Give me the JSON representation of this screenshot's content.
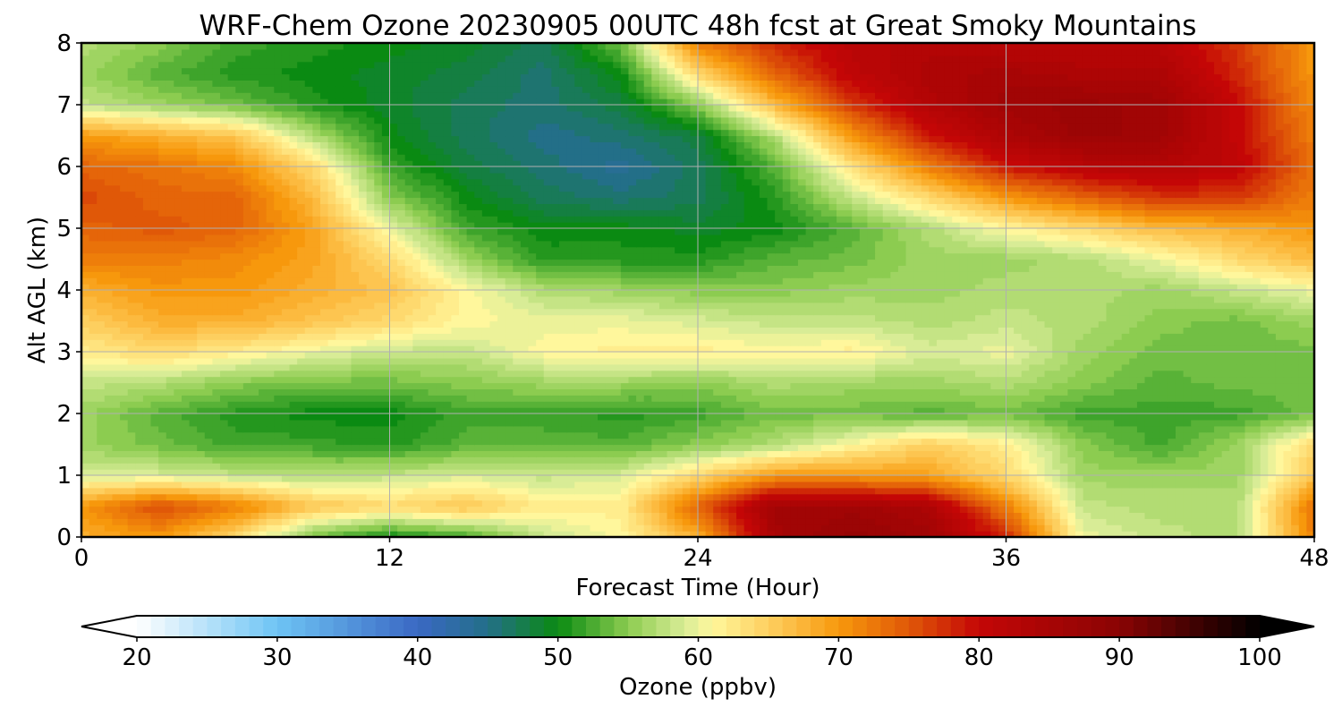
{
  "chart_data": {
    "type": "heatmap",
    "title": "WRF-Chem Ozone  20230905 00UTC 48h fcst at Great Smoky Mountains",
    "xlabel": "Forecast Time (Hour)",
    "ylabel": "Alt AGL (km)",
    "xlim": [
      0,
      48
    ],
    "ylim": [
      0,
      8
    ],
    "xticks": [
      0,
      12,
      24,
      36,
      48
    ],
    "yticks": [
      0,
      1,
      2,
      3,
      4,
      5,
      6,
      7,
      8
    ],
    "grid": true,
    "x": [
      0,
      3,
      6,
      9,
      12,
      15,
      18,
      21,
      24,
      27,
      30,
      33,
      36,
      39,
      42,
      45,
      48
    ],
    "y": [
      0,
      0.5,
      1,
      1.5,
      2,
      2.5,
      3,
      3.5,
      4,
      4.5,
      5,
      5.5,
      6,
      6.5,
      7,
      7.5,
      8
    ],
    "z": [
      [
        68,
        70,
        64,
        54,
        50,
        52,
        58,
        61,
        68,
        85,
        88,
        86,
        78,
        60,
        58,
        57,
        72
      ],
      [
        70,
        76,
        72,
        66,
        64,
        66,
        62,
        62,
        74,
        86,
        86,
        84,
        72,
        58,
        57,
        57,
        73
      ],
      [
        59,
        59,
        58,
        57,
        58,
        59,
        58,
        59,
        64,
        70,
        70,
        69,
        64,
        56,
        56,
        56,
        66
      ],
      [
        56,
        54,
        52,
        52,
        51,
        53,
        53,
        53,
        55,
        57,
        61,
        65,
        62,
        55,
        52,
        56,
        64
      ],
      [
        56,
        53,
        51,
        50,
        50,
        52,
        52,
        51,
        52,
        54,
        54,
        53,
        54,
        52,
        52,
        52,
        54
      ],
      [
        58,
        57,
        55,
        54,
        54,
        55,
        56,
        56,
        55,
        57,
        56,
        56,
        57,
        55,
        53,
        54,
        54
      ],
      [
        62,
        64,
        62,
        60,
        58,
        58,
        61,
        62,
        62,
        61,
        62,
        59,
        60,
        56,
        54,
        54,
        54
      ],
      [
        65,
        68,
        68,
        66,
        64,
        61,
        60,
        60,
        59,
        58,
        58,
        57,
        58,
        57,
        55,
        54,
        56
      ],
      [
        68,
        70,
        70,
        68,
        66,
        61,
        57,
        56,
        55,
        55,
        56,
        56,
        57,
        57,
        56,
        58,
        60
      ],
      [
        72,
        72,
        71,
        69,
        64,
        56,
        51,
        51,
        51,
        53,
        54,
        56,
        56,
        57,
        60,
        64,
        67
      ],
      [
        74,
        75,
        74,
        69,
        60,
        52,
        50,
        50,
        49,
        50,
        53,
        57,
        61,
        64,
        67,
        68,
        70
      ],
      [
        76,
        74,
        74,
        67,
        55,
        50,
        47,
        46,
        47,
        51,
        58,
        64,
        70,
        74,
        77,
        77,
        72
      ],
      [
        74,
        73,
        71,
        64,
        52,
        48,
        46,
        44,
        47,
        53,
        63,
        72,
        79,
        82,
        83,
        81,
        73
      ],
      [
        70,
        68,
        66,
        57,
        50,
        47,
        45,
        46,
        48,
        57,
        70,
        79,
        84,
        87,
        86,
        80,
        72
      ],
      [
        58,
        56,
        54,
        51,
        49,
        47,
        46,
        48,
        55,
        67,
        77,
        83,
        86,
        87,
        86,
        80,
        71
      ],
      [
        56,
        53,
        51,
        50,
        49,
        48,
        46,
        50,
        64,
        74,
        81,
        84,
        85,
        84,
        84,
        78,
        70
      ],
      [
        57,
        55,
        52,
        51,
        50,
        49,
        47,
        54,
        72,
        78,
        82,
        83,
        82,
        82,
        82,
        77,
        70
      ]
    ],
    "colorbar": {
      "label": "Ozone  (ppbv)",
      "vmin": 20,
      "vmax": 100,
      "ticks": [
        20,
        30,
        40,
        50,
        60,
        70,
        80,
        90,
        100
      ],
      "extend": "both",
      "stops": [
        {
          "v": 20,
          "c": "#ffffff"
        },
        {
          "v": 30,
          "c": "#6ec4f4"
        },
        {
          "v": 40,
          "c": "#3a68c4"
        },
        {
          "v": 45,
          "c": "#236f88"
        },
        {
          "v": 50,
          "c": "#0a8a12"
        },
        {
          "v": 55,
          "c": "#8ccc50"
        },
        {
          "v": 59,
          "c": "#d8ec96"
        },
        {
          "v": 61,
          "c": "#fff79c"
        },
        {
          "v": 66,
          "c": "#fdc550"
        },
        {
          "v": 70,
          "c": "#f7980c"
        },
        {
          "v": 75,
          "c": "#e05808"
        },
        {
          "v": 80,
          "c": "#c40606"
        },
        {
          "v": 90,
          "c": "#8a0404"
        },
        {
          "v": 100,
          "c": "#000000"
        }
      ]
    }
  }
}
